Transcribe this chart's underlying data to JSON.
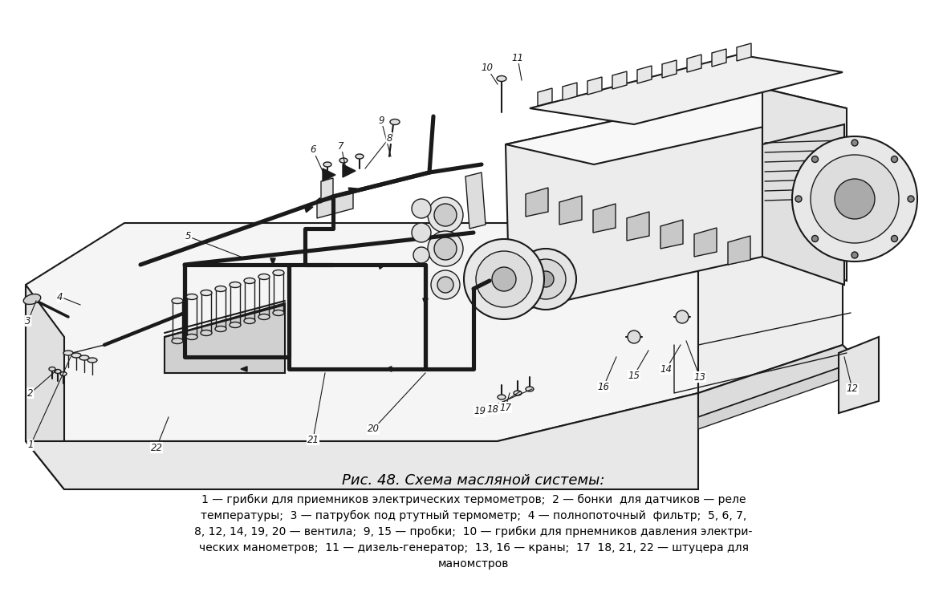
{
  "title": "Рис. 48. Схема масляной системы:",
  "caption_lines": [
    "1 — грибки для приемников электрических термометров;  2 — бонки  для датчиков — реле",
    "температуры;  3 — патрубок под ртутный термометр;  4 — полнопоточный  фильтр;  5, 6, 7,",
    "8, 12, 14, 19, 20 — вентила;  9, 15 — пробки;  10 — грибки для прнемников давления электри-",
    "ческих манометров;  11 — дизель-генератор;  13, 16 — краны;  17  18, 21, 22 — штуцера для",
    "маномстров"
  ],
  "bg_color": "#ffffff",
  "text_color": "#000000",
  "title_fontsize": 13,
  "caption_fontsize": 10.0,
  "fig_width": 11.8,
  "fig_height": 7.43
}
